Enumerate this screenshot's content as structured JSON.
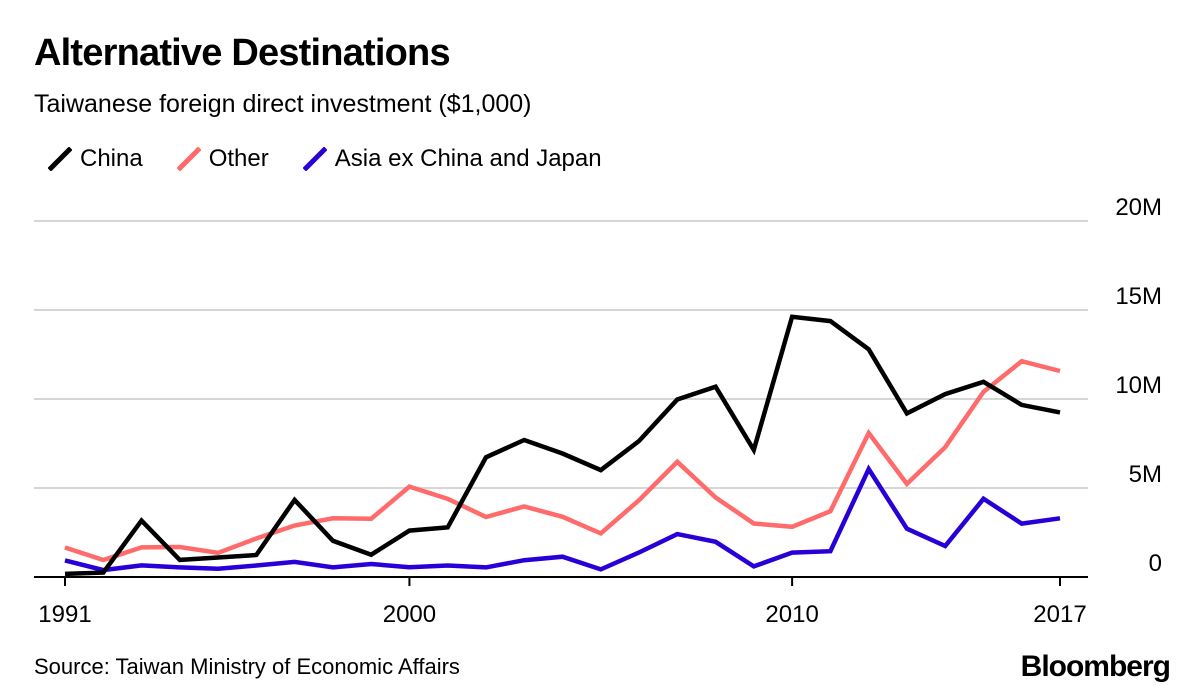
{
  "title": "Alternative Destinations",
  "subtitle": "Taiwanese foreign direct investment ($1,000)",
  "source": "Source: Taiwan Ministry of Economic Affairs",
  "logo": "Bloomberg",
  "legend": [
    {
      "label": "China",
      "color": "#000000"
    },
    {
      "label": "Other",
      "color": "#ff6b6b"
    },
    {
      "label": "Asia ex China and Japan",
      "color": "#2800d7"
    }
  ],
  "chart_data": {
    "type": "line",
    "title": "Alternative Destinations",
    "subtitle": "Taiwanese foreign direct investment ($1,000)",
    "xlabel": "",
    "ylabel": "",
    "x": [
      1991,
      1992,
      1993,
      1994,
      1995,
      1996,
      1997,
      1998,
      1999,
      2000,
      2001,
      2002,
      2003,
      2004,
      2005,
      2006,
      2007,
      2008,
      2009,
      2010,
      2011,
      2012,
      2013,
      2014,
      2015,
      2016,
      2017
    ],
    "xlim": [
      1991,
      2017
    ],
    "ylim": [
      0,
      20000000
    ],
    "x_ticks": [
      1991,
      2000,
      2010,
      2017
    ],
    "x_tick_labels": [
      "1991",
      "2000",
      "2010",
      "2017"
    ],
    "y_ticks": [
      0,
      5000000,
      10000000,
      15000000,
      20000000
    ],
    "y_tick_labels": [
      "0",
      "5M",
      "10M",
      "15M",
      "20M"
    ],
    "grid": true,
    "legend_position": "top-left",
    "series": [
      {
        "name": "China",
        "color": "#000000",
        "values": [
          174000,
          247000,
          3168000,
          962000,
          1093000,
          1237000,
          4334000,
          2035000,
          1253000,
          2607000,
          2784000,
          6723000,
          7699000,
          6941000,
          6007000,
          7642000,
          9971000,
          10691000,
          7143000,
          14618000,
          14377000,
          12792000,
          9190000,
          10277000,
          10965000,
          9671000,
          9249000
        ]
      },
      {
        "name": "Other",
        "color": "#ff6b6b",
        "values": [
          1656000,
          955000,
          1661000,
          1684000,
          1357000,
          2165000,
          2894000,
          3296000,
          3269000,
          5077000,
          4392000,
          3370000,
          3969000,
          3382000,
          2447000,
          4315000,
          6470000,
          4466000,
          3005000,
          2823000,
          3697000,
          8092000,
          5232000,
          7294000,
          10398000,
          12123000,
          11573000
        ]
      },
      {
        "name": "Asia ex China and Japan",
        "color": "#2800d7",
        "values": [
          933000,
          385000,
          650000,
          540000,
          458000,
          645000,
          846000,
          538000,
          731000,
          553000,
          646000,
          542000,
          945000,
          1139000,
          428000,
          1379000,
          2412000,
          1980000,
          595000,
          1372000,
          1450000,
          6069000,
          2712000,
          1743000,
          4393000,
          2998000,
          3299000
        ]
      }
    ]
  }
}
